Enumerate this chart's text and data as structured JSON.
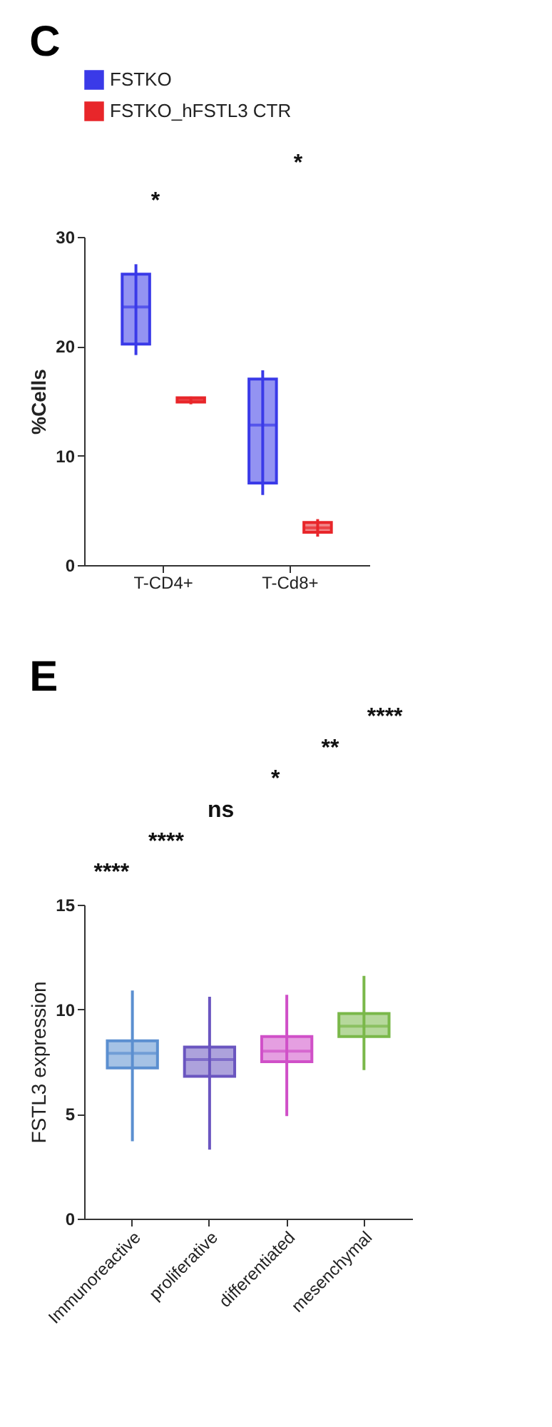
{
  "chart_data": [
    {
      "type": "box",
      "title": "C",
      "ylabel": "%Cells",
      "categories": [
        "T-CD4+",
        "T-Cd8+"
      ],
      "ylim": [
        0,
        30
      ],
      "yticks": [
        0,
        10,
        20,
        30
      ],
      "legend": "top",
      "annotations": [
        "*",
        "*"
      ],
      "series": [
        {
          "name": "FSTKO",
          "color": "#3a3ae8",
          "boxes": [
            {
              "low": 19.2,
              "q1": 20.2,
              "median": 23.6,
              "q3": 26.6,
              "high": 27.5
            },
            {
              "low": 6.4,
              "q1": 7.5,
              "median": 12.8,
              "q3": 17.0,
              "high": 17.8
            }
          ]
        },
        {
          "name": "FSTKO_hFSTL3 CTR",
          "color": "#e8262a",
          "boxes": [
            {
              "low": 14.7,
              "q1": 14.9,
              "median": 15.1,
              "q3": 15.3,
              "high": 15.4
            },
            {
              "low": 2.6,
              "q1": 3.0,
              "median": 3.4,
              "q3": 3.9,
              "high": 4.2
            }
          ]
        }
      ]
    },
    {
      "type": "box",
      "title": "E",
      "ylabel": "FSTL3 expression",
      "categories": [
        "Immunoreactive",
        "proliferative",
        "differentiated",
        "mesenchymal"
      ],
      "ylim": [
        0,
        15
      ],
      "yticks": [
        0,
        5,
        10,
        15
      ],
      "annotations": [
        "****",
        "****",
        "ns",
        "*",
        "**",
        "****"
      ],
      "colors": [
        "#5b8fd0",
        "#6a55c0",
        "#d050c8",
        "#7ab84a"
      ],
      "boxes": [
        {
          "low": 3.7,
          "q1": 7.2,
          "median": 7.9,
          "q3": 8.5,
          "high": 10.9
        },
        {
          "low": 3.3,
          "q1": 6.8,
          "median": 7.6,
          "q3": 8.2,
          "high": 10.6
        },
        {
          "low": 4.9,
          "q1": 7.5,
          "median": 8.0,
          "q3": 8.7,
          "high": 10.7
        },
        {
          "low": 7.1,
          "q1": 8.7,
          "median": 9.2,
          "q3": 9.8,
          "high": 11.6
        }
      ]
    }
  ]
}
